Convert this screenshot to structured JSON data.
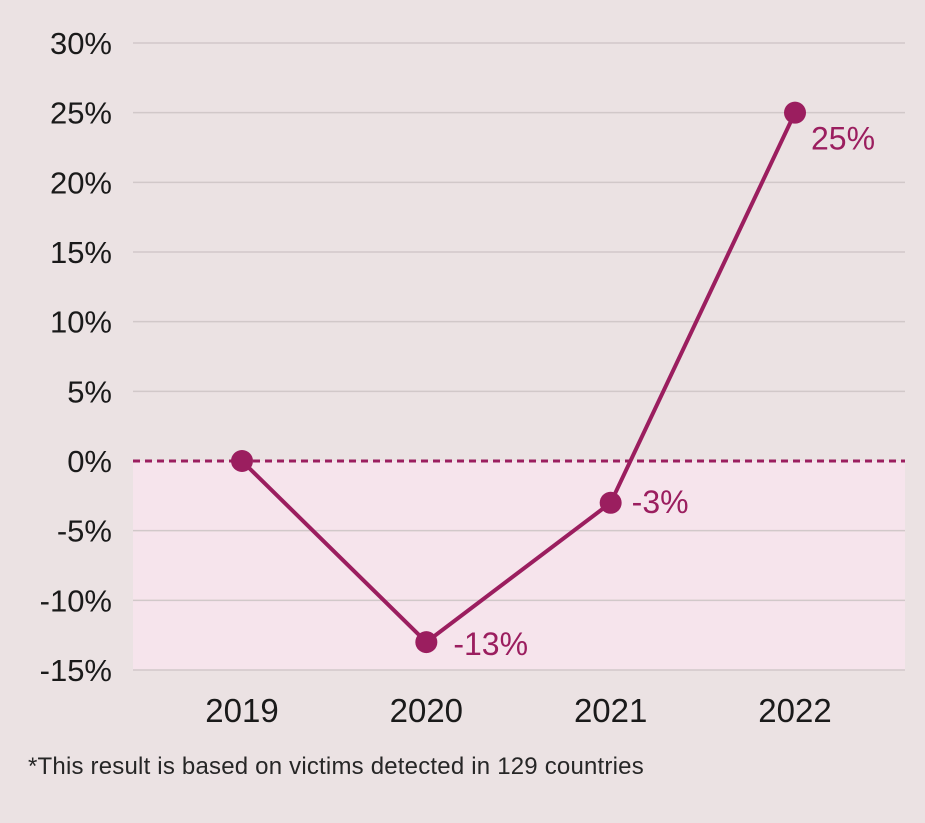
{
  "chart_data": {
    "type": "line",
    "title": "",
    "x": [
      "2019",
      "2020",
      "2021",
      "2022"
    ],
    "values": [
      0,
      -13,
      -3,
      25
    ],
    "point_labels": [
      "",
      "-13%",
      "-3%",
      "25%"
    ],
    "y_ticks": [
      30,
      25,
      20,
      15,
      10,
      5,
      0,
      -5,
      -10,
      -15
    ],
    "y_tick_labels": [
      "30%",
      "25%",
      "20%",
      "15%",
      "10%",
      "5%",
      "0%",
      "-5%",
      "-10%",
      "-15%"
    ],
    "ylim": [
      -15,
      30
    ],
    "xlabel": "",
    "ylabel": "",
    "grid": true,
    "legend": "none",
    "zero_line_style": "dashed",
    "shaded_below_zero": true,
    "footnote": "*This result is based on victims detected in 129 countries",
    "colors": {
      "line": "#9B1E5F",
      "marker": "#9B1E5F",
      "point_label": "#9B1E5F",
      "zero_line": "#9B1E5F",
      "grid": "#D1C8C9",
      "background": "#EBE2E3",
      "below_zero_fill": "#F6E4EC",
      "axis_text": "#1A1A1A",
      "footnote_text": "#262626"
    }
  }
}
